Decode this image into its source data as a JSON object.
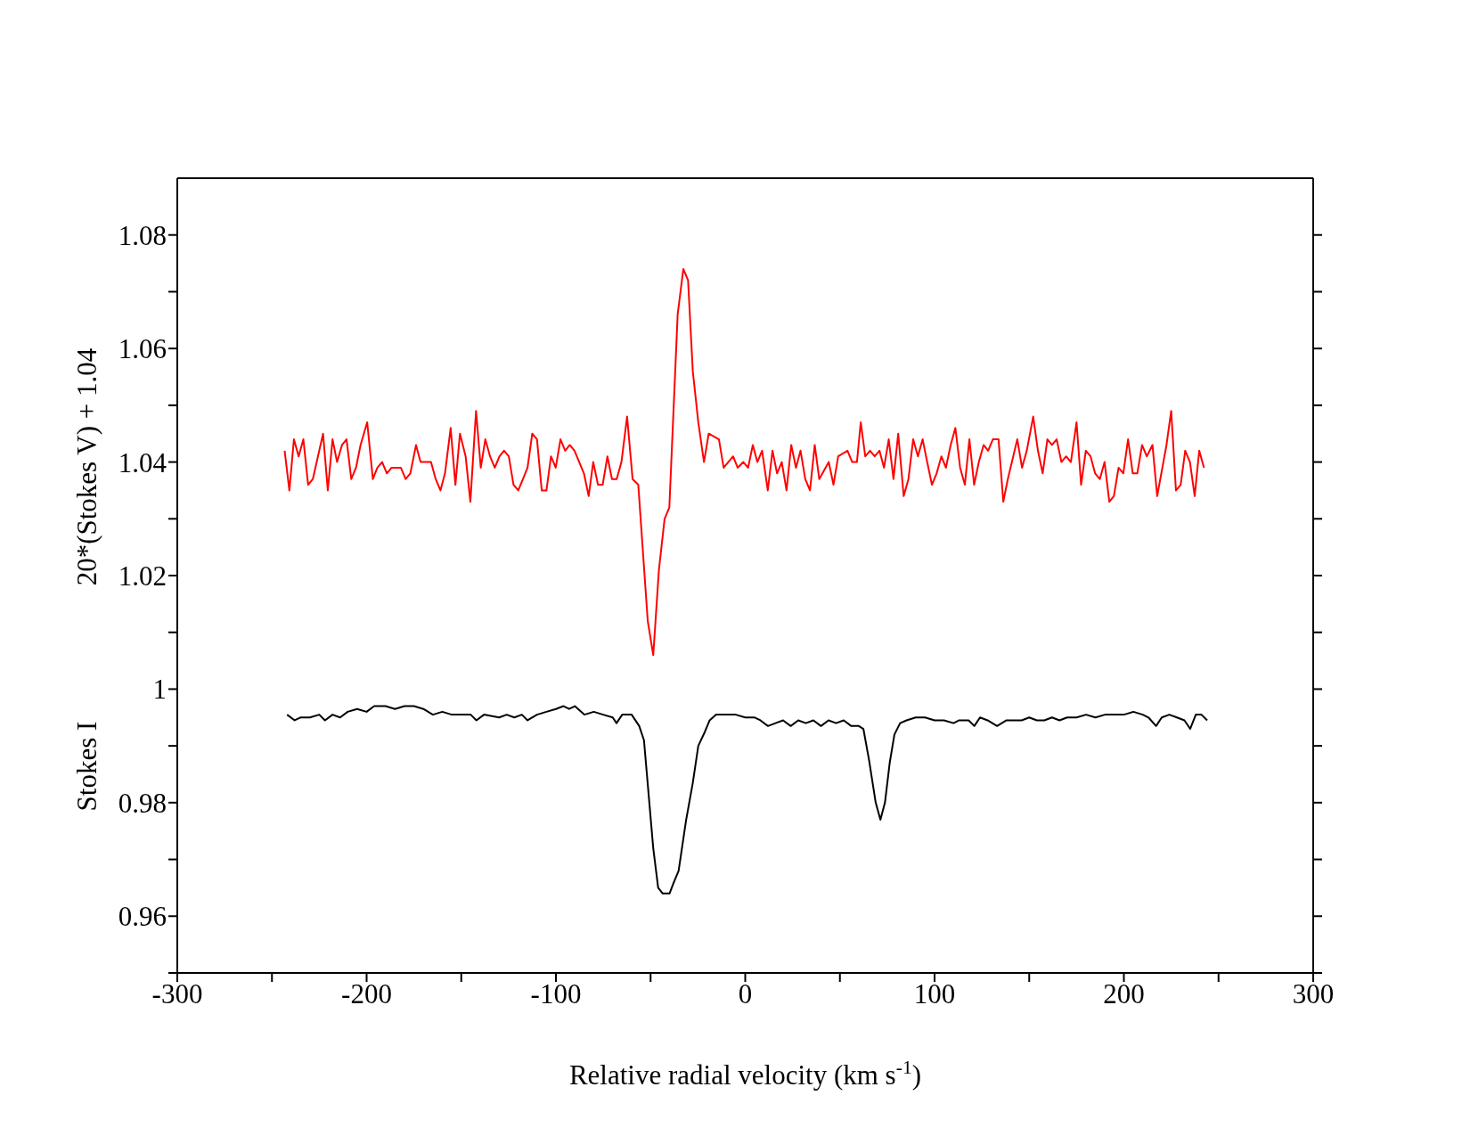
{
  "chart_data": {
    "type": "line",
    "xlabel": "Relative radial velocity (km s$^{-1}$)",
    "ylabel": "20*(Stokes V) + 1.04",
    "annotations": [
      "Stokes I"
    ],
    "xlim": [
      -300,
      300
    ],
    "ylim": [
      0.95,
      1.09
    ],
    "xticks": [
      -300,
      {
        "value": -250,
        "label": null
      },
      -200,
      {
        "value": -150,
        "label": null
      },
      -100,
      {
        "value": -50,
        "label": null
      },
      0,
      {
        "value": 50,
        "label": null
      },
      100,
      {
        "value": 150,
        "label": null
      },
      200,
      {
        "value": 250,
        "label": null
      },
      300
    ],
    "yticks": [
      {
        "value": 0.95,
        "label": null
      },
      0.96,
      {
        "value": 0.97,
        "label": null
      },
      0.98,
      {
        "value": 0.99,
        "label": null
      },
      1,
      {
        "value": 1.01,
        "label": null
      },
      1.02,
      {
        "value": 1.03,
        "label": null
      },
      1.04,
      {
        "value": 1.05,
        "label": null
      },
      1.06,
      {
        "value": 1.07,
        "label": null
      },
      1.08
    ],
    "grid": false,
    "series": [
      {
        "color": "#ff0000",
        "x": [
          -243.3,
          -240.8,
          -238.4,
          -235.9,
          -233.4,
          -230.9,
          -228.4,
          -223.0,
          -220.5,
          -218.0,
          -215.6,
          -213.0,
          -210.6,
          -208.1,
          -205.6,
          -203.2,
          -199.7,
          -196.7,
          -194.3,
          -191.8,
          -189.3,
          -186.8,
          -181.9,
          -179.4,
          -176.9,
          -173.9,
          -171.5,
          -168.5,
          -166.0,
          -163.5,
          -161.0,
          -158.6,
          -155.6,
          -153.1,
          -150.7,
          -147.7,
          -145.2,
          -142.2,
          -139.7,
          -137.3,
          -134.8,
          -132.3,
          -129.8,
          -127.4,
          -124.9,
          -122.4,
          -119.9,
          -117.4,
          -115.0,
          -112.5,
          -110.0,
          -107.5,
          -105.0,
          -102.6,
          -100.1,
          -97.6,
          -95.1,
          -92.7,
          -90.2,
          -85.2,
          -82.7,
          -80.3,
          -77.8,
          -75.3,
          -72.8,
          -70.4,
          -67.9,
          -65.4,
          -62.4,
          -59.5,
          -56.5,
          -51.5,
          -48.6,
          -45.6,
          -42.6,
          -40.1,
          -35.7,
          -32.7,
          -30.2,
          -27.7,
          -24.8,
          -21.8,
          -19.3,
          -13.9,
          -11.4,
          -6.4,
          -4.0,
          -1.0,
          1.5,
          4.0,
          6.4,
          8.9,
          11.9,
          14.4,
          16.8,
          19.3,
          21.8,
          24.3,
          26.8,
          29.2,
          31.7,
          34.2,
          36.7,
          39.1,
          44.1,
          46.6,
          49.1,
          54.0,
          56.5,
          59.0,
          61.0,
          63.4,
          65.9,
          68.4,
          70.9,
          73.3,
          75.8,
          78.3,
          80.8,
          83.7,
          86.2,
          88.7,
          91.2,
          93.7,
          96.1,
          98.6,
          101.1,
          103.6,
          106.0,
          108.5,
          111.0,
          113.5,
          116.0,
          118.4,
          120.9,
          123.4,
          125.9,
          128.3,
          130.8,
          133.8,
          136.3,
          138.7,
          143.7,
          146.2,
          148.7,
          152.1,
          154.6,
          157.1,
          159.6,
          162.0,
          164.5,
          167.0,
          169.5,
          172.0,
          175.0,
          177.4,
          179.9,
          182.4,
          184.8,
          187.3,
          189.8,
          192.3,
          194.7,
          197.2,
          199.7,
          202.2,
          204.7,
          207.1,
          209.6,
          212.1,
          215.1,
          217.6,
          222.5,
          225.0,
          227.5,
          230.0,
          232.4,
          234.9,
          237.4,
          239.8,
          242.3
        ],
        "values": [
          1.042,
          1.035,
          1.044,
          1.041,
          1.044,
          1.036,
          1.037,
          1.045,
          1.035,
          1.044,
          1.04,
          1.043,
          1.044,
          1.037,
          1.039,
          1.043,
          1.047,
          1.037,
          1.039,
          1.04,
          1.038,
          1.039,
          1.039,
          1.037,
          1.038,
          1.043,
          1.04,
          1.04,
          1.04,
          1.037,
          1.035,
          1.038,
          1.046,
          1.036,
          1.045,
          1.041,
          1.033,
          1.049,
          1.039,
          1.044,
          1.041,
          1.039,
          1.041,
          1.042,
          1.041,
          1.036,
          1.035,
          1.037,
          1.039,
          1.045,
          1.044,
          1.035,
          1.035,
          1.041,
          1.039,
          1.044,
          1.042,
          1.043,
          1.042,
          1.038,
          1.034,
          1.04,
          1.036,
          1.036,
          1.041,
          1.037,
          1.037,
          1.04,
          1.048,
          1.037,
          1.036,
          1.012,
          1.006,
          1.021,
          1.03,
          1.032,
          1.066,
          1.074,
          1.072,
          1.056,
          1.047,
          1.04,
          1.045,
          1.044,
          1.039,
          1.041,
          1.039,
          1.04,
          1.039,
          1.043,
          1.04,
          1.042,
          1.035,
          1.042,
          1.038,
          1.04,
          1.035,
          1.043,
          1.039,
          1.042,
          1.037,
          1.035,
          1.043,
          1.037,
          1.04,
          1.036,
          1.041,
          1.042,
          1.04,
          1.04,
          1.047,
          1.041,
          1.042,
          1.041,
          1.042,
          1.039,
          1.044,
          1.037,
          1.045,
          1.034,
          1.037,
          1.044,
          1.041,
          1.044,
          1.04,
          1.036,
          1.038,
          1.041,
          1.039,
          1.043,
          1.046,
          1.039,
          1.036,
          1.044,
          1.036,
          1.04,
          1.043,
          1.042,
          1.044,
          1.044,
          1.033,
          1.037,
          1.044,
          1.039,
          1.042,
          1.048,
          1.042,
          1.038,
          1.044,
          1.043,
          1.044,
          1.04,
          1.041,
          1.04,
          1.047,
          1.036,
          1.042,
          1.041,
          1.038,
          1.037,
          1.04,
          1.033,
          1.034,
          1.039,
          1.038,
          1.044,
          1.038,
          1.038,
          1.043,
          1.041,
          1.043,
          1.034,
          1.043,
          1.049,
          1.035,
          1.036,
          1.042,
          1.04,
          1.034,
          1.042,
          1.039
        ]
      },
      {
        "color": "#000000",
        "x": [
          -242,
          -238,
          -235,
          -230,
          -225,
          -222,
          -218,
          -214,
          -210,
          -205,
          -200,
          -196,
          -190,
          -185,
          -180,
          -175,
          -170,
          -165,
          -160,
          -155,
          -150,
          -145,
          -142,
          -138,
          -130,
          -126,
          -122,
          -118,
          -115,
          -110,
          -105,
          -100,
          -96,
          -93,
          -90,
          -85,
          -80,
          -75,
          -70,
          -68,
          -65,
          -60,
          -56,
          -53.5,
          -48.6,
          -46,
          -43.6,
          -40,
          -37.7,
          -35.2,
          -31.2,
          -27.7,
          -24.8,
          -21.3,
          -18.8,
          -15.4,
          -10,
          -5,
          0,
          5,
          8,
          12,
          16,
          20,
          24,
          28,
          32,
          36,
          40,
          44,
          48,
          52,
          56,
          60,
          62.4,
          65.4,
          68.9,
          71.4,
          73.8,
          76.3,
          78.8,
          81.8,
          85.2,
          90,
          95,
          100,
          105,
          110,
          113,
          118,
          121,
          124,
          128,
          133,
          138,
          142,
          146,
          150,
          154,
          158,
          162,
          166,
          170,
          175,
          180,
          185,
          190,
          195,
          200,
          205,
          210,
          213,
          217,
          220,
          224,
          228,
          232,
          235,
          238,
          241,
          244
        ],
        "values": [
          0.9955,
          0.9945,
          0.995,
          0.995,
          0.9955,
          0.9945,
          0.9955,
          0.995,
          0.996,
          0.9965,
          0.996,
          0.997,
          0.997,
          0.9965,
          0.997,
          0.997,
          0.9965,
          0.9955,
          0.996,
          0.9955,
          0.9955,
          0.9955,
          0.9945,
          0.9955,
          0.995,
          0.9955,
          0.995,
          0.9955,
          0.9945,
          0.9955,
          0.996,
          0.9965,
          0.997,
          0.9965,
          0.997,
          0.9955,
          0.996,
          0.9955,
          0.995,
          0.994,
          0.9955,
          0.9955,
          0.9935,
          0.991,
          0.972,
          0.965,
          0.964,
          0.964,
          0.966,
          0.968,
          0.977,
          0.9835,
          0.99,
          0.9925,
          0.9945,
          0.9955,
          0.9955,
          0.9955,
          0.995,
          0.995,
          0.9945,
          0.9935,
          0.994,
          0.9945,
          0.9935,
          0.9945,
          0.994,
          0.9945,
          0.9935,
          0.9945,
          0.994,
          0.9945,
          0.9935,
          0.9935,
          0.993,
          0.9875,
          0.98,
          0.977,
          0.98,
          0.987,
          0.992,
          0.994,
          0.9945,
          0.995,
          0.995,
          0.9945,
          0.9945,
          0.994,
          0.9945,
          0.9945,
          0.9935,
          0.995,
          0.9945,
          0.9935,
          0.9945,
          0.9945,
          0.9945,
          0.995,
          0.9945,
          0.9945,
          0.995,
          0.9945,
          0.995,
          0.995,
          0.9955,
          0.995,
          0.9955,
          0.9955,
          0.9955,
          0.996,
          0.9955,
          0.995,
          0.9935,
          0.995,
          0.9955,
          0.995,
          0.9945,
          0.993,
          0.9955,
          0.9955,
          0.9945
        ]
      }
    ]
  }
}
